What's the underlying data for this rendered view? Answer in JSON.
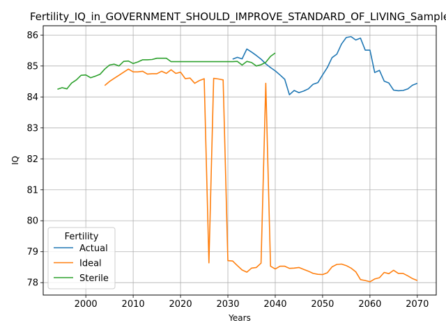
{
  "chart_data": {
    "type": "line",
    "title": "Fertility_IQ_in_GOVERNMENT_SHOULD_IMPROVE_STANDARD_OF_LIVING_Sample",
    "xlabel": "Years",
    "ylabel": "IQ",
    "xlim": [
      1991,
      2074
    ],
    "ylim": [
      77.6,
      86.3
    ],
    "xticks": [
      "2000",
      "2010",
      "2020",
      "2030",
      "2040",
      "2050",
      "2060",
      "2070"
    ],
    "yticks": [
      "78",
      "79",
      "80",
      "81",
      "82",
      "83",
      "84",
      "85",
      "86"
    ],
    "grid": true,
    "legend": {
      "title": "Fertility",
      "placement": "lower-left"
    },
    "series": [
      {
        "name": "Actual",
        "color": "#1f77b4",
        "x": [
          2031,
          2032,
          2033,
          2034,
          2035,
          2036,
          2037,
          2038,
          2039,
          2040,
          2041,
          2042,
          2043,
          2044,
          2045,
          2046,
          2047,
          2048,
          2049,
          2050,
          2051,
          2052,
          2053,
          2054,
          2055,
          2056,
          2057,
          2058,
          2059,
          2060,
          2061,
          2062,
          2063,
          2064,
          2065,
          2066,
          2067,
          2068,
          2069,
          2070
        ],
        "y": [
          85.22,
          85.28,
          85.23,
          85.55,
          85.45,
          85.34,
          85.22,
          85.07,
          84.95,
          84.84,
          84.71,
          84.57,
          84.07,
          84.21,
          84.14,
          84.19,
          84.26,
          84.41,
          84.46,
          84.71,
          84.95,
          85.27,
          85.38,
          85.71,
          85.92,
          85.95,
          85.84,
          85.9,
          85.51,
          85.51,
          84.79,
          84.86,
          84.51,
          84.45,
          84.22,
          84.2,
          84.21,
          84.26,
          84.38,
          84.44
        ]
      },
      {
        "name": "Ideal",
        "color": "#ff7f0e",
        "x": [
          2004,
          2005,
          2006,
          2007,
          2008,
          2009,
          2010,
          2011,
          2012,
          2013,
          2014,
          2015,
          2016,
          2017,
          2018,
          2019,
          2020,
          2021,
          2022,
          2023,
          2024,
          2025,
          2026,
          2027,
          2028,
          2029,
          2030,
          2031,
          2032,
          2033,
          2034,
          2035,
          2036,
          2037,
          2038,
          2039,
          2040,
          2041,
          2042,
          2043,
          2044,
          2045,
          2046,
          2047,
          2048,
          2049,
          2050,
          2051,
          2052,
          2053,
          2054,
          2055,
          2056,
          2057,
          2058,
          2059,
          2060,
          2061,
          2062,
          2063,
          2064,
          2065,
          2066,
          2067,
          2068,
          2069,
          2070
        ],
        "y": [
          84.37,
          84.5,
          84.6,
          84.7,
          84.8,
          84.9,
          84.81,
          84.81,
          84.83,
          84.74,
          84.75,
          84.75,
          84.83,
          84.76,
          84.88,
          84.76,
          84.8,
          84.59,
          84.61,
          84.44,
          84.53,
          84.59,
          78.64,
          84.6,
          84.58,
          84.55,
          78.71,
          78.7,
          78.55,
          78.41,
          78.34,
          78.47,
          78.49,
          78.63,
          84.44,
          78.53,
          78.44,
          78.53,
          78.53,
          78.46,
          78.47,
          78.49,
          78.43,
          78.37,
          78.3,
          78.27,
          78.26,
          78.32,
          78.51,
          78.59,
          78.6,
          78.55,
          78.47,
          78.35,
          78.1,
          78.07,
          78.03,
          78.12,
          78.16,
          78.33,
          78.29,
          78.4,
          78.3,
          78.3,
          78.22,
          78.13,
          78.07
        ]
      },
      {
        "name": "Sterile",
        "color": "#2ca02c",
        "x": [
          1994,
          1995,
          1996,
          1997,
          1998,
          1999,
          2000,
          2001,
          2002,
          2003,
          2004,
          2005,
          2006,
          2007,
          2008,
          2009,
          2010,
          2011,
          2012,
          2013,
          2014,
          2015,
          2016,
          2017,
          2018,
          2019,
          2020,
          2021,
          2022,
          2023,
          2024,
          2025,
          2026,
          2027,
          2028,
          2029,
          2030,
          2031,
          2032,
          2033,
          2034,
          2035,
          2036,
          2037,
          2038,
          2039,
          2040
        ],
        "y": [
          84.25,
          84.3,
          84.26,
          84.45,
          84.55,
          84.7,
          84.71,
          84.62,
          84.67,
          84.73,
          84.9,
          85.03,
          85.06,
          85.0,
          85.15,
          85.16,
          85.08,
          85.13,
          85.2,
          85.2,
          85.21,
          85.25,
          85.25,
          85.25,
          85.14,
          85.14,
          85.14,
          85.14,
          85.14,
          85.14,
          85.14,
          85.14,
          85.14,
          85.14,
          85.14,
          85.14,
          85.14,
          85.14,
          85.15,
          85.03,
          85.15,
          85.11,
          85.0,
          85.04,
          85.12,
          85.31,
          85.42
        ]
      }
    ]
  }
}
